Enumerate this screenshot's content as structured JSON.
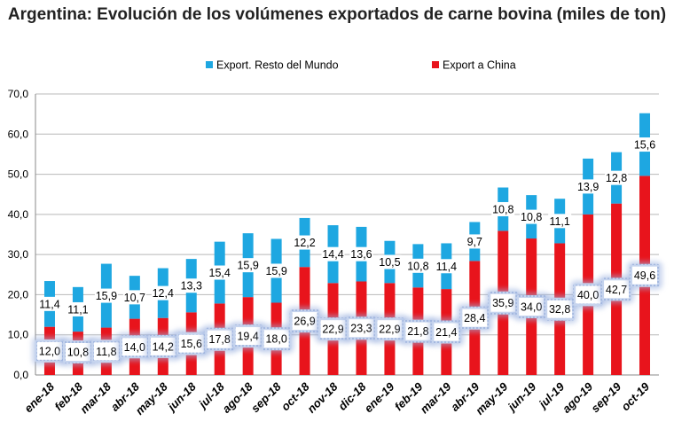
{
  "chart_data": {
    "type": "bar",
    "stacked": true,
    "title": "Argentina: Evolución de los volúmenes exportados de carne bovina (miles de ton)",
    "xlabel": "",
    "ylabel": "",
    "ylim": [
      0,
      70
    ],
    "yticks": [
      "0,0",
      "10,0",
      "20,0",
      "30,0",
      "40,0",
      "50,0",
      "60,0",
      "70,0"
    ],
    "grid": true,
    "legend_position": "top",
    "categories": [
      "ene-18",
      "feb-18",
      "mar-18",
      "abr-18",
      "may-18",
      "jun-18",
      "jul-18",
      "ago-18",
      "sep-18",
      "oct-18",
      "nov-18",
      "dic-18",
      "ene-19",
      "feb-19",
      "mar-19",
      "abr-19",
      "may-19",
      "jun-19",
      "jul-19",
      "ago-19",
      "sep-19",
      "oct-19"
    ],
    "series": [
      {
        "name": "Export a China",
        "color": "#e8141c",
        "values": [
          12.0,
          10.8,
          11.8,
          14.0,
          14.2,
          15.6,
          17.8,
          19.4,
          18.0,
          26.9,
          22.9,
          23.3,
          22.9,
          21.8,
          21.4,
          28.4,
          35.9,
          34.0,
          32.8,
          40.0,
          42.7,
          49.6
        ],
        "labels": [
          "12,0",
          "10,8",
          "11,8",
          "14,0",
          "14,2",
          "15,6",
          "17,8",
          "19,4",
          "18,0",
          "26,9",
          "22,9",
          "23,3",
          "22,9",
          "21,8",
          "21,4",
          "28,4",
          "35,9",
          "34,0",
          "32,8",
          "40,0",
          "42,7",
          "49,6"
        ]
      },
      {
        "name": "Export. Resto del Mundo",
        "color": "#1ea7e1",
        "values": [
          11.4,
          11.1,
          15.9,
          10.7,
          12.4,
          13.3,
          15.4,
          15.9,
          15.9,
          12.2,
          14.4,
          13.6,
          10.5,
          10.8,
          11.4,
          9.7,
          10.8,
          10.8,
          11.1,
          13.9,
          12.8,
          15.6
        ],
        "labels": [
          "11,4",
          "11,1",
          "15,9",
          "10,7",
          "12,4",
          "13,3",
          "15,4",
          "15,9",
          "15,9",
          "12,2",
          "14,4",
          "13,6",
          "10,5",
          "10,8",
          "11,4",
          "9,7",
          "10,8",
          "10,8",
          "11,1",
          "13,9",
          "12,8",
          "15,6"
        ]
      }
    ]
  }
}
